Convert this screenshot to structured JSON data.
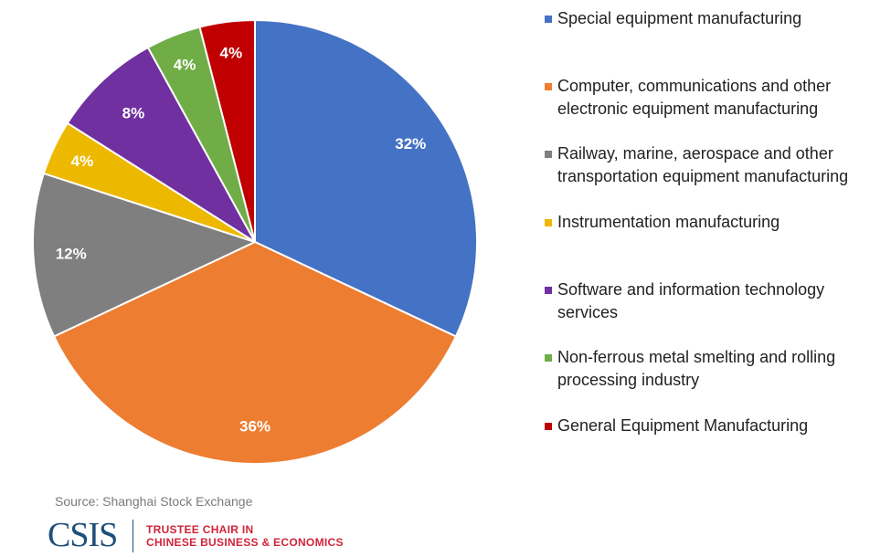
{
  "chart_data": {
    "type": "pie",
    "title": "",
    "start": "top, clockwise",
    "slices": [
      {
        "label": "Special equipment manufacturing",
        "value": 32,
        "data_label": "32%",
        "color": "#4472C4"
      },
      {
        "label": "Computer, communications and other electronic equipment manufacturing",
        "value": 36,
        "data_label": "36%",
        "color": "#ED7D31"
      },
      {
        "label": "Railway, marine, aerospace and other transportation equipment manufacturing",
        "value": 12,
        "data_label": "12%",
        "color": "#7F7F7F"
      },
      {
        "label": "Instrumentation manufacturing",
        "value": 4,
        "data_label": "4%",
        "color": "#EDB800"
      },
      {
        "label": "Software and information technology services",
        "value": 8,
        "data_label": "8%",
        "color": "#7030A0"
      },
      {
        "label": "Non-ferrous metal smelting and rolling processing industry",
        "value": 4,
        "data_label": "4%",
        "color": "#70AD47"
      },
      {
        "label": "General Equipment Manufacturing",
        "value": 4,
        "data_label": "4%",
        "color": "#C00000"
      }
    ],
    "legend_placement": "right"
  },
  "footer": {
    "source": "Source: Shanghai Stock Exchange",
    "logo_text": "CSIS",
    "logo_line1": "TRUSTEE CHAIR IN",
    "logo_line2": "CHINESE BUSINESS & ECONOMICS"
  }
}
